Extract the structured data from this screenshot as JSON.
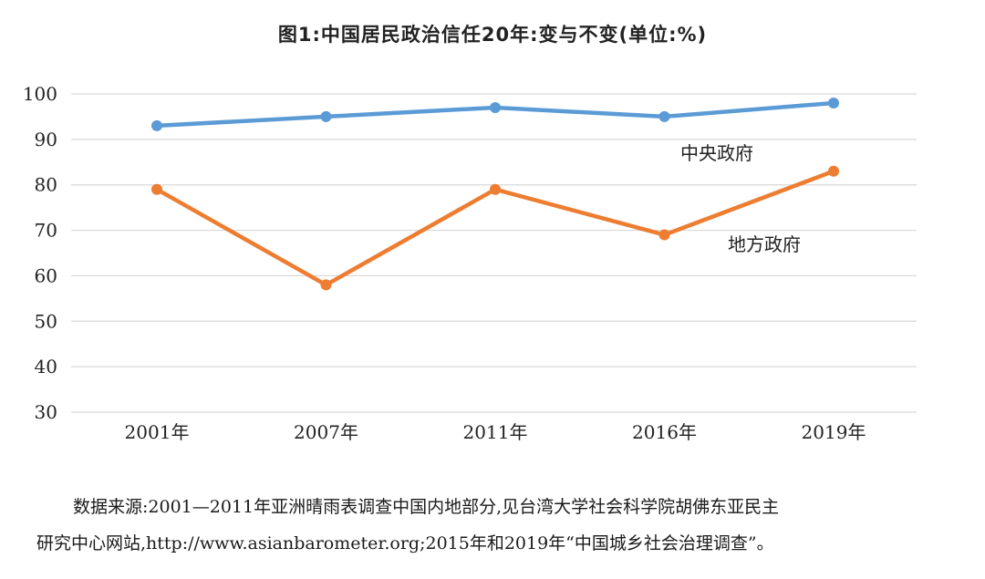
{
  "chart_data": {
    "type": "line",
    "title": "图1:中国居民政治信任20年:变与不变(单位:%)",
    "categories": [
      "2001年",
      "2007年",
      "2011年",
      "2016年",
      "2019年"
    ],
    "ylim": [
      30,
      100
    ],
    "yticks": [
      30,
      40,
      50,
      60,
      70,
      80,
      90,
      100
    ],
    "grid": true,
    "series": [
      {
        "name": "中央政府",
        "values": [
          93,
          95,
          97,
          95,
          98
        ],
        "color": "#5b9bd5"
      },
      {
        "name": "地方政府",
        "values": [
          79,
          58,
          79,
          69,
          83
        ],
        "color": "#ed7d31"
      }
    ]
  },
  "caption": {
    "line1": "数据来源:2001—2011年亚洲晴雨表调查中国内地部分,见台湾大学社会科学院胡佛东亚民主",
    "line2": "研究中心网站,http://www.asianbarometer.org;2015年和2019年“中国城乡社会治理调查”。"
  }
}
